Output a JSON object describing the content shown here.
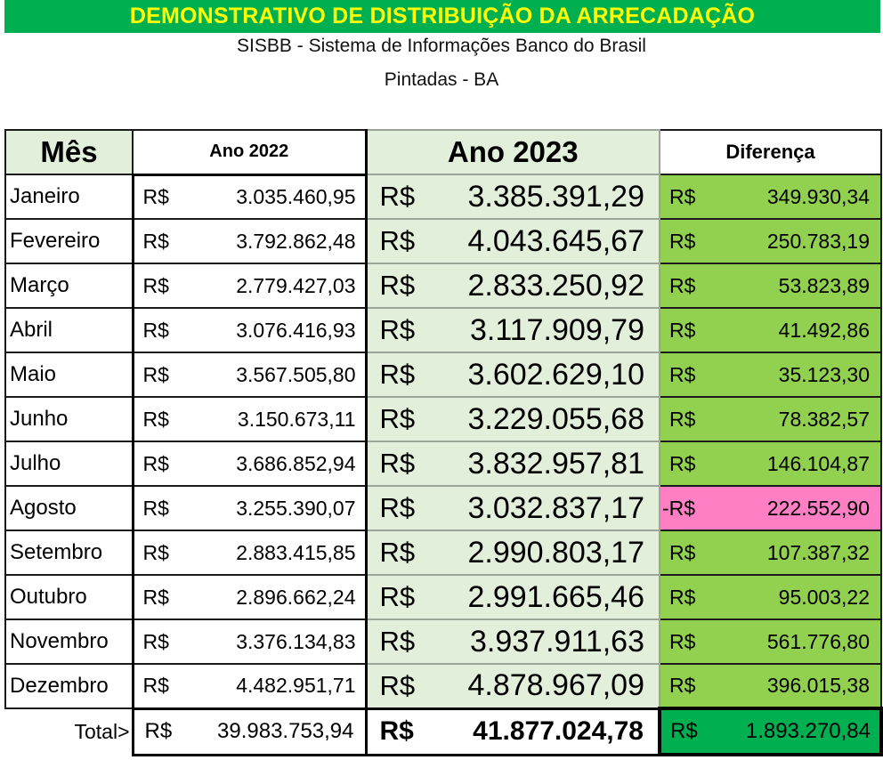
{
  "banner_title": "DEMONSTRATIVO DE DISTRIBUIÇÃO DA ARRECADAÇÃO",
  "subtitle1": "SISBB - Sistema de Informações Banco do Brasil",
  "subtitle2": "Pintadas - BA",
  "headers": {
    "mes": "Mês",
    "ano2022": "Ano 2022",
    "ano2023": "Ano 2023",
    "diferenca": "Diferença"
  },
  "currency": "R$",
  "neg_currency": "-R$",
  "rows": [
    {
      "mes": "Janeiro",
      "v2022": "3.035.460,95",
      "v2023": "3.385.391,29",
      "dif": "349.930,34",
      "neg": false
    },
    {
      "mes": "Fevereiro",
      "v2022": "3.792.862,48",
      "v2023": "4.043.645,67",
      "dif": "250.783,19",
      "neg": false
    },
    {
      "mes": "Março",
      "v2022": "2.779.427,03",
      "v2023": "2.833.250,92",
      "dif": "53.823,89",
      "neg": false
    },
    {
      "mes": "Abril",
      "v2022": "3.076.416,93",
      "v2023": "3.117.909,79",
      "dif": "41.492,86",
      "neg": false
    },
    {
      "mes": "Maio",
      "v2022": "3.567.505,80",
      "v2023": "3.602.629,10",
      "dif": "35.123,30",
      "neg": false
    },
    {
      "mes": "Junho",
      "v2022": "3.150.673,11",
      "v2023": "3.229.055,68",
      "dif": "78.382,57",
      "neg": false
    },
    {
      "mes": "Julho",
      "v2022": "3.686.852,94",
      "v2023": "3.832.957,81",
      "dif": "146.104,87",
      "neg": false
    },
    {
      "mes": "Agosto",
      "v2022": "3.255.390,07",
      "v2023": "3.032.837,17",
      "dif": "222.552,90",
      "neg": true
    },
    {
      "mes": "Setembro",
      "v2022": "2.883.415,85",
      "v2023": "2.990.803,17",
      "dif": "107.387,32",
      "neg": false
    },
    {
      "mes": "Outubro",
      "v2022": "2.896.662,24",
      "v2023": "2.991.665,46",
      "dif": "95.003,22",
      "neg": false
    },
    {
      "mes": "Novembro",
      "v2022": "3.376.134,83",
      "v2023": "3.937.911,63",
      "dif": "561.776,80",
      "neg": false
    },
    {
      "mes": "Dezembro",
      "v2022": "4.482.951,71",
      "v2023": "4.878.967,09",
      "dif": "396.015,38",
      "neg": false
    }
  ],
  "total": {
    "label": "Total>",
    "v2022": "39.983.753,94",
    "v2023": "41.877.024,78",
    "dif": "1.893.270,84"
  },
  "colors": {
    "banner_bg": "#00b050",
    "banner_text": "#ffff00",
    "ano2023_bg": "#e2efda",
    "dif_positive": "#92d050",
    "dif_negative": "#ff7fc5",
    "total_dif": "#00b050"
  }
}
